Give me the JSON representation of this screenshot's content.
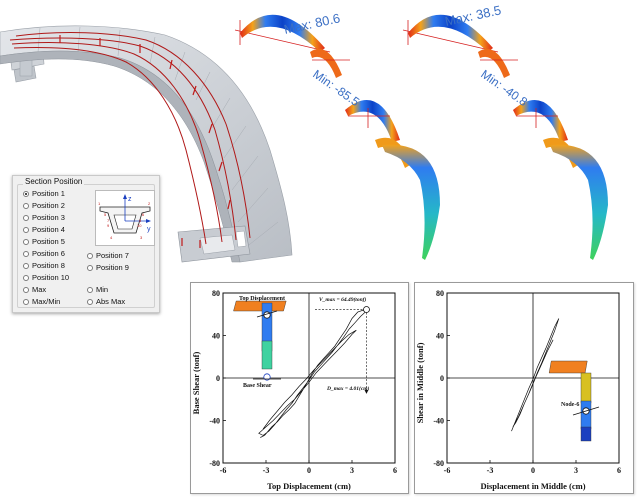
{
  "diagram_labels": {
    "left_max": "Max: 80.6",
    "left_min": "Min: -85.5",
    "right_max": "Max: 38.5",
    "right_min": "Min: -40.8"
  },
  "section_panel": {
    "title": "Section Position",
    "options": [
      {
        "label": "Position 1",
        "checked": true
      },
      {
        "label": "Position 2",
        "checked": false
      },
      {
        "label": "Position 3",
        "checked": false
      },
      {
        "label": "Position 4",
        "checked": false
      },
      {
        "label": "Position 5",
        "checked": false
      },
      {
        "label": "Position 6",
        "checked": false
      },
      {
        "label": "Position 7",
        "checked": false
      },
      {
        "label": "Position 8",
        "checked": false
      },
      {
        "label": "Position 9",
        "checked": false
      },
      {
        "label": "Position 10",
        "checked": false
      },
      {
        "label": "Max",
        "checked": false
      },
      {
        "label": "Min",
        "checked": false
      },
      {
        "label": "Max/Min",
        "checked": false
      },
      {
        "label": "Abs Max",
        "checked": false
      }
    ],
    "thumbnail": {
      "axis_z": "z",
      "axis_y": "y",
      "point_labels": [
        "1",
        "2",
        "3",
        "4",
        "5",
        "6",
        "7",
        "8",
        "9",
        "10"
      ]
    }
  },
  "chart_data": [
    {
      "type": "line",
      "xlabel": "Top Displacement (cm)",
      "ylabel": "Base Shear (tonf)",
      "xlim": [
        -6,
        6
      ],
      "ylim": [
        -80,
        80
      ],
      "xticks": [
        "-6",
        "-3",
        "0",
        "3",
        "6"
      ],
      "yticks": [
        "80",
        "40",
        "0",
        "-40",
        "-80"
      ],
      "series": [
        {
          "x": [
            -3.4,
            -3.1,
            -2.6,
            -2.2,
            -1.8,
            -1.4,
            -1.0,
            -0.6,
            -0.2,
            0.2,
            0.6,
            1.0,
            1.4,
            1.8,
            2.2,
            2.6,
            3.0,
            3.4,
            3.8,
            4.0,
            3.6,
            3.2,
            2.8,
            2.4,
            2.0,
            1.6,
            1.2,
            0.8,
            0.4,
            0.0,
            -0.4,
            -0.8,
            -1.2,
            -1.6,
            -2.0,
            -2.4,
            -2.8,
            -3.2,
            -3.5,
            -3.0,
            -2.5,
            -2.0,
            -1.5,
            -1.0,
            -0.5,
            0.0,
            0.5,
            1.0,
            1.5,
            2.0,
            2.5,
            3.0,
            3.3,
            2.8,
            2.3,
            1.8,
            1.3,
            0.8,
            0.3,
            -0.2,
            -0.7,
            -1.2,
            -1.7,
            -2.2,
            -2.7,
            -3.2
          ],
          "y": [
            -56,
            -54,
            -46,
            -41,
            -35,
            -30,
            -24,
            -15,
            -6,
            4,
            12,
            18,
            24,
            30,
            38,
            46,
            56,
            62,
            64,
            63,
            58,
            52,
            46,
            38,
            31,
            24,
            18,
            12,
            6,
            -2,
            -9,
            -16,
            -24,
            -30,
            -37,
            -44,
            -50,
            -54,
            -52,
            -46,
            -40,
            -33,
            -26,
            -20,
            -12,
            -4,
            5,
            12,
            19,
            26,
            33,
            41,
            45,
            41,
            35,
            28,
            21,
            14,
            7,
            -1,
            -8,
            -16,
            -23,
            -31,
            -39,
            -48
          ]
        }
      ],
      "annotations": {
        "vmax": "V_max = 64.49(tonf)",
        "dmax": "D_max = 4.01(cm)",
        "top_displacement": "Top Displacement",
        "base_shear": "Base Shear",
        "vmax_value": 64.49,
        "dmax_value": 4.01
      }
    },
    {
      "type": "line",
      "xlabel": "Displacement in Middle (cm)",
      "ylabel": "Shear in Middle (tonf)",
      "xlim": [
        -6,
        6
      ],
      "ylim": [
        -80,
        80
      ],
      "xticks": [
        "-6",
        "-3",
        "0",
        "3",
        "6"
      ],
      "yticks": [
        "80",
        "40",
        "0",
        "-40",
        "-80"
      ],
      "series": [
        {
          "x": [
            -1.5,
            -1.2,
            -0.9,
            -0.6,
            -0.3,
            0.0,
            0.3,
            0.6,
            0.9,
            1.2,
            1.5,
            1.8,
            1.5,
            1.2,
            0.9,
            0.6,
            0.3,
            0.0,
            -0.3,
            -0.6,
            -0.9,
            -1.2,
            -1.4,
            -1.0,
            -0.6,
            -0.2,
            0.2,
            0.6,
            1.0,
            1.4
          ],
          "y": [
            -50,
            -40,
            -30,
            -20,
            -10,
            -1,
            10,
            19,
            28,
            38,
            48,
            56,
            44,
            34,
            24,
            14,
            5,
            -5,
            -15,
            -24,
            -34,
            -42,
            -46,
            -36,
            -24,
            -12,
            1,
            13,
            25,
            36
          ]
        }
      ],
      "annotations": {
        "node_label": "Node-6"
      }
    }
  ],
  "colors": {
    "deck": "#cfd3d8",
    "tendon": "#b01818",
    "contour_blue": "#1f63d6",
    "contour_red": "#e02818",
    "label_blue": "#3b6fc4"
  }
}
